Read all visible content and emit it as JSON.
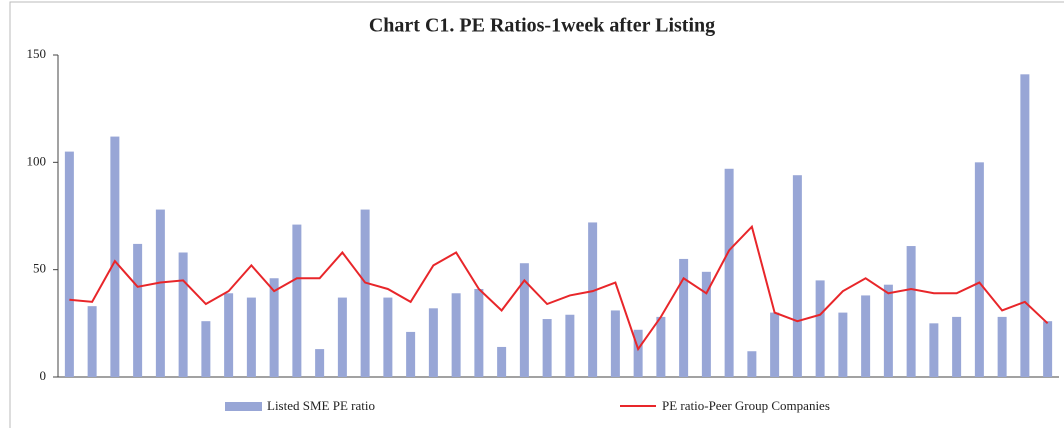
{
  "chart_data": {
    "type": "bar_line",
    "title": "Chart C1. PE Ratios-1week after Listing",
    "categories": [
      null,
      null,
      null,
      null,
      null,
      null,
      null,
      null,
      null,
      null,
      null,
      null,
      null,
      null,
      null,
      null,
      null,
      null,
      null,
      null,
      null,
      null,
      null,
      null,
      null,
      null,
      null,
      null,
      null,
      null,
      null,
      null,
      null,
      null,
      null,
      null,
      null,
      null,
      null,
      null,
      null,
      null,
      null,
      null
    ],
    "series": [
      {
        "name": "Listed SME PE ratio",
        "type": "bar",
        "color": "#98a6d6",
        "values": [
          105,
          33,
          112,
          62,
          78,
          58,
          26,
          39,
          37,
          46,
          71,
          13,
          37,
          78,
          37,
          21,
          32,
          39,
          41,
          14,
          53,
          27,
          29,
          72,
          31,
          22,
          28,
          55,
          49,
          97,
          12,
          30,
          94,
          45,
          30,
          38,
          43,
          61,
          25,
          28,
          100,
          28,
          141,
          26
        ]
      },
      {
        "name": "PE ratio-Peer Group Companies",
        "type": "line",
        "color": "#e8262a",
        "values": [
          36,
          35,
          54,
          42,
          44,
          45,
          34,
          40,
          52,
          40,
          46,
          46,
          58,
          44,
          41,
          35,
          52,
          58,
          41,
          31,
          45,
          34,
          38,
          40,
          44,
          13,
          28,
          46,
          39,
          59,
          70,
          30,
          26,
          29,
          40,
          46,
          39,
          41,
          39,
          39,
          44,
          31,
          35,
          25
        ]
      }
    ],
    "ylim": [
      0,
      150
    ],
    "yticks": [
      0,
      50,
      100,
      150
    ],
    "grid": false
  }
}
